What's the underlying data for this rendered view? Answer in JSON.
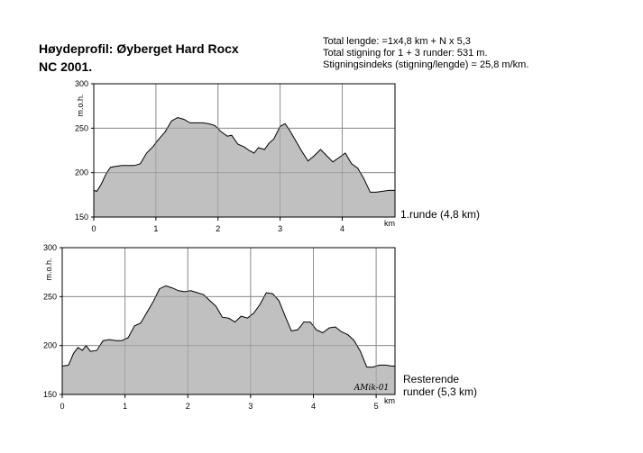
{
  "header": {
    "title_line1": "Høydeprofil:  Øyberget Hard Rocx",
    "title_line2": "NC 2001.",
    "stat1": "Total lengde: =1x4,8 km + N x 5,3",
    "stat2": "Total stigning for 1 + 3 runder: 531 m.",
    "stat3": "Stigningsindeks (stigning/lengde) = 25,8 m/km."
  },
  "signature": "AMik-01",
  "chart_data": [
    {
      "type": "area",
      "ylabel": "m.o.h.",
      "xlabel": "km",
      "annotation": "1.runde (4,8 km)",
      "xlim": [
        0,
        4.85
      ],
      "ylim": [
        150,
        300
      ],
      "xticks": [
        0,
        1,
        2,
        3,
        4
      ],
      "yticks": [
        150,
        200,
        250,
        300
      ],
      "grid": true,
      "fill_color": "#c0c0c0",
      "x": [
        0,
        0.05,
        0.12,
        0.2,
        0.27,
        0.35,
        0.45,
        0.55,
        0.65,
        0.75,
        0.85,
        0.95,
        1.05,
        1.15,
        1.25,
        1.35,
        1.45,
        1.55,
        1.65,
        1.75,
        1.85,
        1.95,
        2.05,
        2.15,
        2.22,
        2.32,
        2.42,
        2.5,
        2.58,
        2.65,
        2.75,
        2.82,
        2.9,
        3.0,
        3.08,
        3.15,
        3.25,
        3.35,
        3.45,
        3.55,
        3.65,
        3.75,
        3.85,
        3.95,
        4.05,
        4.15,
        4.25,
        4.35,
        4.45,
        4.55,
        4.65,
        4.75,
        4.85
      ],
      "values": [
        180,
        179,
        187,
        199,
        206,
        207,
        208,
        208,
        208,
        210,
        222,
        229,
        238,
        246,
        258,
        262,
        260,
        256,
        256,
        256,
        255,
        253,
        246,
        241,
        242,
        232,
        229,
        225,
        222,
        228,
        226,
        233,
        238,
        252,
        255,
        248,
        236,
        224,
        213,
        219,
        226,
        219,
        212,
        217,
        222,
        210,
        205,
        193,
        178,
        178,
        179,
        180,
        180
      ]
    },
    {
      "type": "area",
      "ylabel": "m.o.h.",
      "xlabel": "km",
      "annotation_line1": "Resterende",
      "annotation_line2": "runder (5,3 km)",
      "xlim": [
        0,
        5.3
      ],
      "ylim": [
        150,
        300
      ],
      "xticks": [
        0,
        1,
        2,
        3,
        4,
        5
      ],
      "yticks": [
        150,
        200,
        250,
        300
      ],
      "grid": true,
      "fill_color": "#c0c0c0",
      "x": [
        0,
        0.1,
        0.18,
        0.25,
        0.32,
        0.38,
        0.45,
        0.55,
        0.65,
        0.75,
        0.85,
        0.95,
        1.05,
        1.15,
        1.25,
        1.35,
        1.45,
        1.55,
        1.65,
        1.75,
        1.85,
        1.95,
        2.05,
        2.15,
        2.25,
        2.35,
        2.45,
        2.55,
        2.65,
        2.75,
        2.85,
        2.95,
        3.05,
        3.15,
        3.25,
        3.35,
        3.45,
        3.55,
        3.65,
        3.75,
        3.85,
        3.95,
        4.05,
        4.15,
        4.25,
        4.35,
        4.45,
        4.55,
        4.65,
        4.75,
        4.85,
        4.95,
        5.05,
        5.15,
        5.25,
        5.3
      ],
      "values": [
        179,
        180,
        192,
        198,
        195,
        200,
        194,
        195,
        205,
        206,
        205,
        205,
        208,
        220,
        223,
        234,
        245,
        258,
        261,
        259,
        256,
        255,
        256,
        254,
        252,
        246,
        240,
        229,
        228,
        224,
        230,
        228,
        233,
        242,
        254,
        253,
        246,
        230,
        215,
        216,
        224,
        224,
        216,
        213,
        218,
        219,
        214,
        211,
        205,
        194,
        178,
        178,
        180,
        180,
        179,
        179
      ]
    }
  ]
}
